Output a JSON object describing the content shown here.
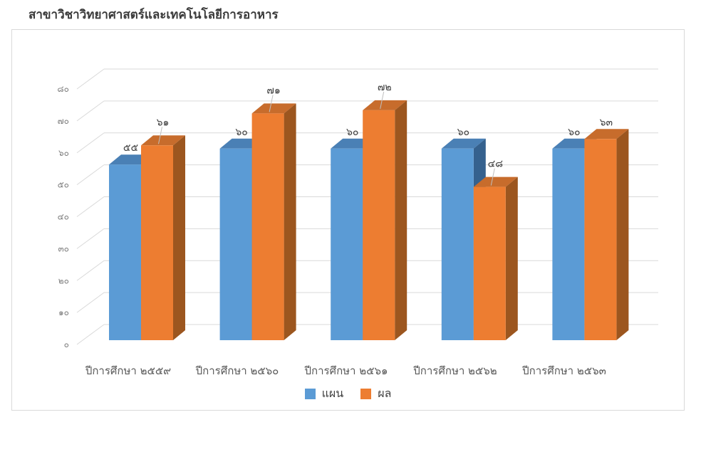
{
  "page": {
    "title": "สาขาวิชาวิทยาศาสตร์และเทคโนโลยีการอาหาร"
  },
  "chart_data": {
    "type": "bar",
    "style": "3d-column",
    "title": "สาขาวิชาวิทยาศาสตร์และเทคโนโลยีการอาหาร",
    "categories": [
      "ปีการศึกษา ๒๕๕๙",
      "ปีการศึกษา ๒๕๖๐",
      "ปีการศึกษา ๒๕๖๑",
      "ปีการศึกษา ๒๕๖๒",
      "ปีการศึกษา ๒๕๖๓"
    ],
    "series": [
      {
        "name": "แผน",
        "values": [
          55,
          60,
          60,
          60,
          60
        ],
        "labels_thai": [
          "๕๕",
          "๖๐",
          "๖๐",
          "๖๐",
          "๖๐"
        ],
        "color_front": "#5B9BD5",
        "color_top": "#4A80B5",
        "color_side": "#35618E"
      },
      {
        "name": "ผล",
        "values": [
          61,
          71,
          72,
          48,
          63
        ],
        "labels_thai": [
          "๖๑",
          "๗๑",
          "๗๒",
          "๔๘",
          "๖๓"
        ],
        "color_front": "#ED7D31",
        "color_top": "#C76C2C",
        "color_side": "#9C561F"
      }
    ],
    "y_axis": {
      "min": 0,
      "max": 80,
      "step": 10,
      "tick_labels_thai": [
        "๐",
        "๑๐",
        "๒๐",
        "๓๐",
        "๔๐",
        "๕๐",
        "๖๐",
        "๗๐",
        "๘๐"
      ]
    },
    "legend": {
      "position": "bottom",
      "entries": [
        "แผน",
        "ผล"
      ]
    },
    "grid": true,
    "xlabel": "",
    "ylabel": ""
  },
  "colors": {
    "gridline": "#D9D9D9",
    "leader_line": "#BFBFBF",
    "tick_label": "#7F7F7F",
    "category_label": "#595959",
    "data_label": "#404040",
    "panel_border": "#D9D9D9",
    "background": "#FFFFFF"
  }
}
